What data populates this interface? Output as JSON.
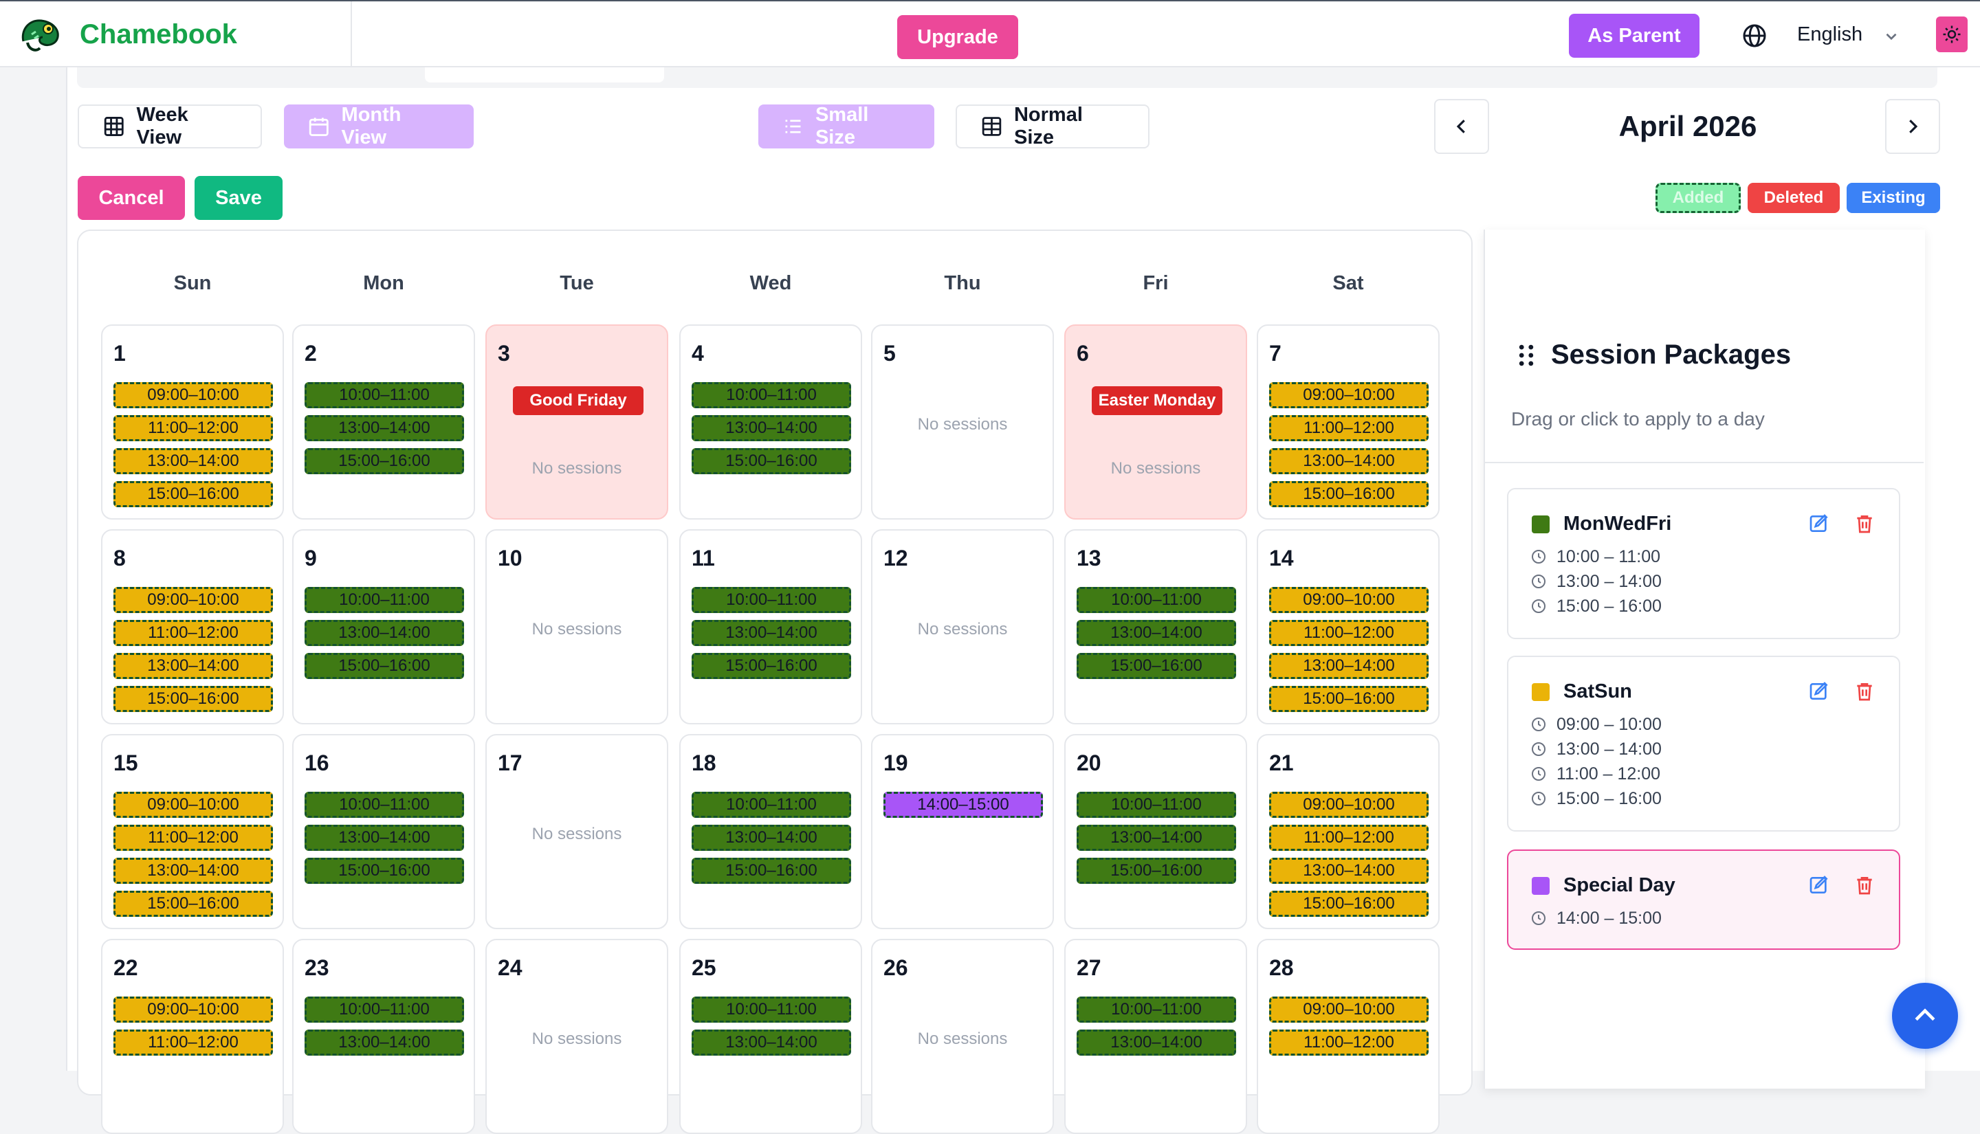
{
  "app": {
    "name": "Chamebook"
  },
  "header": {
    "upgrade_label": "Upgrade",
    "parent_label": "As Parent",
    "language": "English"
  },
  "toolbar": {
    "week_view": "Week View",
    "month_view": "Month View",
    "small_size": "Small Size",
    "normal_size": "Normal Size",
    "month_label": "April 2026",
    "cancel": "Cancel",
    "save": "Save"
  },
  "legend": {
    "added": "Added",
    "deleted": "Deleted",
    "existing": "Existing"
  },
  "colors": {
    "weekday": "#3f7a14",
    "weekend": "#eab308",
    "special": "#a855f7",
    "holiday_bg": "#fee2e2",
    "holiday_tag": "#dc2626"
  },
  "calendar": {
    "weekdays": [
      "Sun",
      "Mon",
      "Tue",
      "Wed",
      "Thu",
      "Fri",
      "Sat"
    ],
    "no_sessions": "No sessions",
    "weeks": [
      [
        {
          "day": "1",
          "type": "weekend",
          "slots": [
            "09:00–10:00",
            "11:00–12:00",
            "13:00–14:00",
            "15:00–16:00"
          ]
        },
        {
          "day": "2",
          "type": "weekday",
          "slots": [
            "10:00–11:00",
            "13:00–14:00",
            "15:00–16:00"
          ]
        },
        {
          "day": "3",
          "type": "holiday",
          "holiday": "Good Friday",
          "slots": []
        },
        {
          "day": "4",
          "type": "weekday",
          "slots": [
            "10:00–11:00",
            "13:00–14:00",
            "15:00–16:00"
          ]
        },
        {
          "day": "5",
          "type": "empty",
          "slots": []
        },
        {
          "day": "6",
          "type": "holiday",
          "holiday": "Easter Monday",
          "slots": []
        },
        {
          "day": "7",
          "type": "weekend",
          "slots": [
            "09:00–10:00",
            "11:00–12:00",
            "13:00–14:00",
            "15:00–16:00"
          ]
        }
      ],
      [
        {
          "day": "8",
          "type": "weekend",
          "slots": [
            "09:00–10:00",
            "11:00–12:00",
            "13:00–14:00",
            "15:00–16:00"
          ]
        },
        {
          "day": "9",
          "type": "weekday",
          "slots": [
            "10:00–11:00",
            "13:00–14:00",
            "15:00–16:00"
          ]
        },
        {
          "day": "10",
          "type": "empty",
          "slots": []
        },
        {
          "day": "11",
          "type": "weekday",
          "slots": [
            "10:00–11:00",
            "13:00–14:00",
            "15:00–16:00"
          ]
        },
        {
          "day": "12",
          "type": "empty",
          "slots": []
        },
        {
          "day": "13",
          "type": "weekday",
          "slots": [
            "10:00–11:00",
            "13:00–14:00",
            "15:00–16:00"
          ]
        },
        {
          "day": "14",
          "type": "weekend",
          "slots": [
            "09:00–10:00",
            "11:00–12:00",
            "13:00–14:00",
            "15:00–16:00"
          ]
        }
      ],
      [
        {
          "day": "15",
          "type": "weekend",
          "slots": [
            "09:00–10:00",
            "11:00–12:00",
            "13:00–14:00",
            "15:00–16:00"
          ]
        },
        {
          "day": "16",
          "type": "weekday",
          "slots": [
            "10:00–11:00",
            "13:00–14:00",
            "15:00–16:00"
          ]
        },
        {
          "day": "17",
          "type": "empty",
          "slots": []
        },
        {
          "day": "18",
          "type": "weekday",
          "slots": [
            "10:00–11:00",
            "13:00–14:00",
            "15:00–16:00"
          ]
        },
        {
          "day": "19",
          "type": "special",
          "slots": [
            "14:00–15:00"
          ]
        },
        {
          "day": "20",
          "type": "weekday",
          "slots": [
            "10:00–11:00",
            "13:00–14:00",
            "15:00–16:00"
          ]
        },
        {
          "day": "21",
          "type": "weekend",
          "slots": [
            "09:00–10:00",
            "11:00–12:00",
            "13:00–14:00",
            "15:00–16:00"
          ]
        }
      ],
      [
        {
          "day": "22",
          "type": "weekend",
          "slots": [
            "09:00–10:00",
            "11:00–12:00"
          ]
        },
        {
          "day": "23",
          "type": "weekday",
          "slots": [
            "10:00–11:00",
            "13:00–14:00"
          ]
        },
        {
          "day": "24",
          "type": "empty",
          "slots": []
        },
        {
          "day": "25",
          "type": "weekday",
          "slots": [
            "10:00–11:00",
            "13:00–14:00"
          ]
        },
        {
          "day": "26",
          "type": "empty",
          "slots": []
        },
        {
          "day": "27",
          "type": "weekday",
          "slots": [
            "10:00–11:00",
            "13:00–14:00"
          ]
        },
        {
          "day": "28",
          "type": "weekend",
          "slots": [
            "09:00–10:00",
            "11:00–12:00"
          ]
        }
      ]
    ]
  },
  "panel": {
    "title": "Session Packages",
    "subtitle": "Drag or click to apply to a day",
    "packages": [
      {
        "name": "MonWedFri",
        "color": "#3f7a14",
        "times": [
          "10:00 – 11:00",
          "13:00 – 14:00",
          "15:00 – 16:00"
        ]
      },
      {
        "name": "SatSun",
        "color": "#eab308",
        "times": [
          "09:00 – 10:00",
          "13:00 – 14:00",
          "11:00 – 12:00",
          "15:00 – 16:00"
        ]
      },
      {
        "name": "Special Day",
        "color": "#a855f7",
        "times": [
          "14:00 – 15:00"
        ]
      }
    ]
  }
}
